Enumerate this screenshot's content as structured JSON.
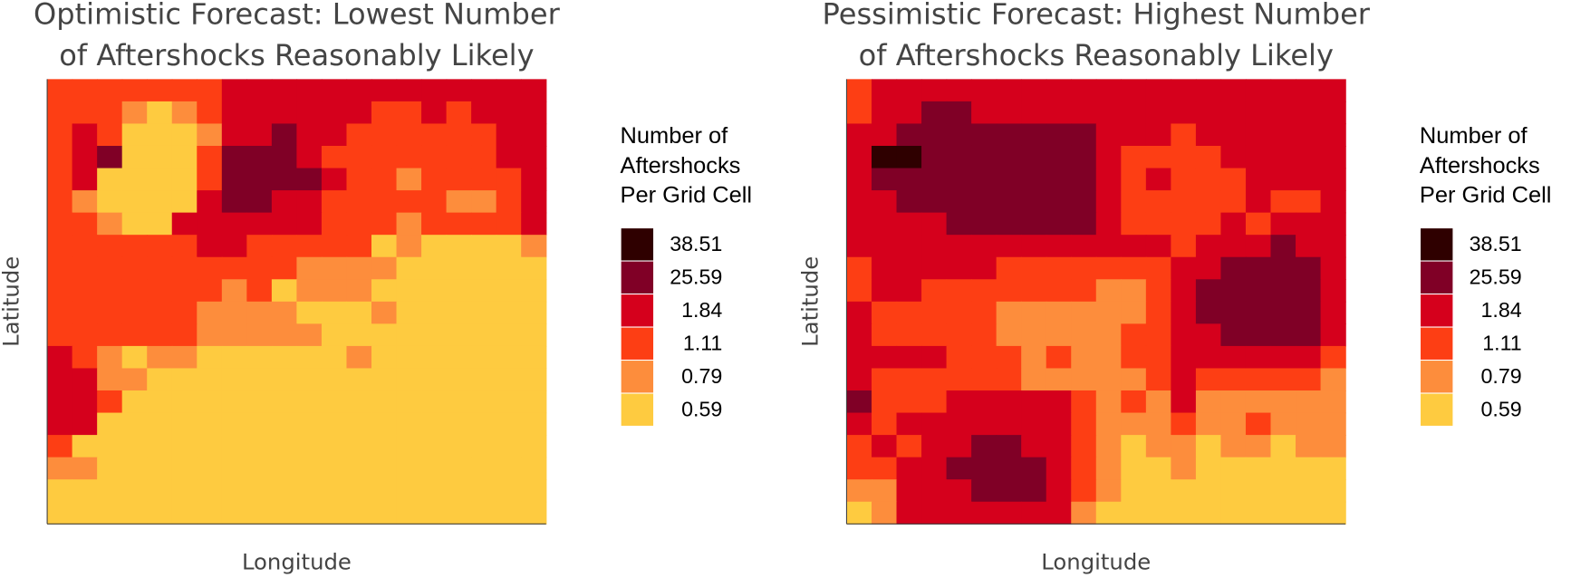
{
  "chart_data": [
    {
      "type": "heatmap",
      "title": [
        "Optimistic Forecast: Lowest Number",
        "of Aftershocks Reasonably Likely"
      ],
      "xlabel": "Longitude",
      "ylabel": "Latitude",
      "legend_title": [
        "Number of",
        "Aftershocks",
        "Per Grid Cell"
      ],
      "classes": [
        38.51,
        25.59,
        1.84,
        1.11,
        0.79,
        0.59
      ],
      "colors": [
        "#2f0000",
        "#800026",
        "#d5001c",
        "#fd3e14",
        "#fd8d3c",
        "#fecb40"
      ],
      "z": [
        [
          1.11,
          1.11,
          1.11,
          1.11,
          1.11,
          1.11,
          1.11,
          1.84,
          1.84,
          1.84,
          1.84,
          1.84,
          1.84,
          1.84,
          1.84,
          1.84,
          1.84,
          1.84,
          1.84,
          1.84
        ],
        [
          1.11,
          1.11,
          1.11,
          0.79,
          0.59,
          0.79,
          1.11,
          1.84,
          1.84,
          1.84,
          1.84,
          1.84,
          1.84,
          1.11,
          1.11,
          1.84,
          1.11,
          1.84,
          1.84,
          1.84
        ],
        [
          1.11,
          1.84,
          1.11,
          0.59,
          0.59,
          0.59,
          0.79,
          1.84,
          1.84,
          25.59,
          1.84,
          1.84,
          1.11,
          1.11,
          1.11,
          1.11,
          1.11,
          1.11,
          1.84,
          1.84
        ],
        [
          1.11,
          1.84,
          25.59,
          0.59,
          0.59,
          0.59,
          1.11,
          25.59,
          25.59,
          25.59,
          1.84,
          1.11,
          1.11,
          1.11,
          1.11,
          1.11,
          1.11,
          1.11,
          1.84,
          1.84
        ],
        [
          1.11,
          1.84,
          0.59,
          0.59,
          0.59,
          0.59,
          1.11,
          25.59,
          25.59,
          25.59,
          25.59,
          1.84,
          1.11,
          1.11,
          0.79,
          1.11,
          1.11,
          1.11,
          1.11,
          1.84
        ],
        [
          1.11,
          0.79,
          0.59,
          0.59,
          0.59,
          0.59,
          1.84,
          25.59,
          25.59,
          1.84,
          1.84,
          1.11,
          1.11,
          1.11,
          1.11,
          1.11,
          0.79,
          0.79,
          1.11,
          1.84
        ],
        [
          1.11,
          1.11,
          0.79,
          0.59,
          0.59,
          1.84,
          1.84,
          1.84,
          1.84,
          1.84,
          1.84,
          1.11,
          1.11,
          1.11,
          0.79,
          1.11,
          1.11,
          1.11,
          1.11,
          1.84
        ],
        [
          1.11,
          1.11,
          1.11,
          1.11,
          1.11,
          1.11,
          1.84,
          1.84,
          1.11,
          1.11,
          1.11,
          1.11,
          1.11,
          0.59,
          0.79,
          0.59,
          0.59,
          0.59,
          0.59,
          0.79
        ],
        [
          1.11,
          1.11,
          1.11,
          1.11,
          1.11,
          1.11,
          1.11,
          1.11,
          1.11,
          1.11,
          0.79,
          0.79,
          0.79,
          0.79,
          0.59,
          0.59,
          0.59,
          0.59,
          0.59,
          0.59
        ],
        [
          1.11,
          1.11,
          1.11,
          1.11,
          1.11,
          1.11,
          1.11,
          0.79,
          1.11,
          0.59,
          0.79,
          0.79,
          0.79,
          0.59,
          0.59,
          0.59,
          0.59,
          0.59,
          0.59,
          0.59
        ],
        [
          1.11,
          1.11,
          1.11,
          1.11,
          1.11,
          1.11,
          0.79,
          0.79,
          0.79,
          0.79,
          0.59,
          0.59,
          0.59,
          0.79,
          0.59,
          0.59,
          0.59,
          0.59,
          0.59,
          0.59
        ],
        [
          1.11,
          1.11,
          1.11,
          1.11,
          1.11,
          1.11,
          0.79,
          0.79,
          0.79,
          0.79,
          0.79,
          0.59,
          0.59,
          0.59,
          0.59,
          0.59,
          0.59,
          0.59,
          0.59,
          0.59
        ],
        [
          1.84,
          1.11,
          0.79,
          0.59,
          0.79,
          0.79,
          0.59,
          0.59,
          0.59,
          0.59,
          0.59,
          0.59,
          0.79,
          0.59,
          0.59,
          0.59,
          0.59,
          0.59,
          0.59,
          0.59
        ],
        [
          1.84,
          1.84,
          0.79,
          0.79,
          0.59,
          0.59,
          0.59,
          0.59,
          0.59,
          0.59,
          0.59,
          0.59,
          0.59,
          0.59,
          0.59,
          0.59,
          0.59,
          0.59,
          0.59,
          0.59
        ],
        [
          1.84,
          1.84,
          1.11,
          0.59,
          0.59,
          0.59,
          0.59,
          0.59,
          0.59,
          0.59,
          0.59,
          0.59,
          0.59,
          0.59,
          0.59,
          0.59,
          0.59,
          0.59,
          0.59,
          0.59
        ],
        [
          1.84,
          1.84,
          0.59,
          0.59,
          0.59,
          0.59,
          0.59,
          0.59,
          0.59,
          0.59,
          0.59,
          0.59,
          0.59,
          0.59,
          0.59,
          0.59,
          0.59,
          0.59,
          0.59,
          0.59
        ],
        [
          1.11,
          0.59,
          0.59,
          0.59,
          0.59,
          0.59,
          0.59,
          0.59,
          0.59,
          0.59,
          0.59,
          0.59,
          0.59,
          0.59,
          0.59,
          0.59,
          0.59,
          0.59,
          0.59,
          0.59
        ],
        [
          0.79,
          0.79,
          0.59,
          0.59,
          0.59,
          0.59,
          0.59,
          0.59,
          0.59,
          0.59,
          0.59,
          0.59,
          0.59,
          0.59,
          0.59,
          0.59,
          0.59,
          0.59,
          0.59,
          0.59
        ],
        [
          0.59,
          0.59,
          0.59,
          0.59,
          0.59,
          0.59,
          0.59,
          0.59,
          0.59,
          0.59,
          0.59,
          0.59,
          0.59,
          0.59,
          0.59,
          0.59,
          0.59,
          0.59,
          0.59,
          0.59
        ],
        [
          0.59,
          0.59,
          0.59,
          0.59,
          0.59,
          0.59,
          0.59,
          0.59,
          0.59,
          0.59,
          0.59,
          0.59,
          0.59,
          0.59,
          0.59,
          0.59,
          0.59,
          0.59,
          0.59,
          0.59
        ]
      ]
    },
    {
      "type": "heatmap",
      "title": [
        "Pessimistic Forecast: Highest Number",
        "of Aftershocks Reasonably Likely"
      ],
      "xlabel": "Longitude",
      "ylabel": "Latitude",
      "legend_title": [
        "Number of",
        "Aftershocks",
        "Per Grid Cell"
      ],
      "classes": [
        38.51,
        25.59,
        1.84,
        1.11,
        0.79,
        0.59
      ],
      "colors": [
        "#2f0000",
        "#800026",
        "#d5001c",
        "#fd3e14",
        "#fd8d3c",
        "#fecb40"
      ],
      "z": [
        [
          1.11,
          1.84,
          1.84,
          1.84,
          1.84,
          1.84,
          1.84,
          1.84,
          1.84,
          1.84,
          1.84,
          1.84,
          1.84,
          1.84,
          1.84,
          1.84,
          1.84,
          1.84,
          1.84,
          1.84
        ],
        [
          1.11,
          1.84,
          1.84,
          25.59,
          25.59,
          1.84,
          1.84,
          1.84,
          1.84,
          1.84,
          1.84,
          1.84,
          1.84,
          1.84,
          1.84,
          1.84,
          1.84,
          1.84,
          1.84,
          1.84
        ],
        [
          1.84,
          1.84,
          25.59,
          25.59,
          25.59,
          25.59,
          25.59,
          25.59,
          25.59,
          25.59,
          1.84,
          1.84,
          1.84,
          1.11,
          1.84,
          1.84,
          1.84,
          1.84,
          1.84,
          1.84
        ],
        [
          1.84,
          38.51,
          38.51,
          25.59,
          25.59,
          25.59,
          25.59,
          25.59,
          25.59,
          25.59,
          1.84,
          1.11,
          1.11,
          1.11,
          1.11,
          1.84,
          1.84,
          1.84,
          1.84,
          1.84
        ],
        [
          1.84,
          25.59,
          25.59,
          25.59,
          25.59,
          25.59,
          25.59,
          25.59,
          25.59,
          25.59,
          1.84,
          1.11,
          1.84,
          1.11,
          1.11,
          1.11,
          1.84,
          1.84,
          1.84,
          1.84
        ],
        [
          1.84,
          1.84,
          25.59,
          25.59,
          25.59,
          25.59,
          25.59,
          25.59,
          25.59,
          25.59,
          1.84,
          1.11,
          1.11,
          1.11,
          1.11,
          1.11,
          1.84,
          1.11,
          1.11,
          1.84
        ],
        [
          1.84,
          1.84,
          1.84,
          1.84,
          25.59,
          25.59,
          25.59,
          25.59,
          25.59,
          25.59,
          1.84,
          1.11,
          1.11,
          1.11,
          1.11,
          1.84,
          1.11,
          1.84,
          1.84,
          1.84
        ],
        [
          1.84,
          1.84,
          1.84,
          1.84,
          1.84,
          1.84,
          1.84,
          1.84,
          1.84,
          1.84,
          1.84,
          1.84,
          1.84,
          1.11,
          1.84,
          1.84,
          1.84,
          25.59,
          1.84,
          1.84
        ],
        [
          1.11,
          1.84,
          1.84,
          1.84,
          1.84,
          1.84,
          1.11,
          1.11,
          1.11,
          1.11,
          1.11,
          1.11,
          1.11,
          1.84,
          1.84,
          25.59,
          25.59,
          25.59,
          25.59,
          1.84
        ],
        [
          1.11,
          1.84,
          1.84,
          1.11,
          1.11,
          1.11,
          1.11,
          1.11,
          1.11,
          1.11,
          0.79,
          0.79,
          1.11,
          1.84,
          25.59,
          25.59,
          25.59,
          25.59,
          25.59,
          1.84
        ],
        [
          1.84,
          1.11,
          1.11,
          1.11,
          1.11,
          1.11,
          0.79,
          0.79,
          0.79,
          0.79,
          0.79,
          0.79,
          1.11,
          1.84,
          25.59,
          25.59,
          25.59,
          25.59,
          25.59,
          1.84
        ],
        [
          1.84,
          1.11,
          1.11,
          1.11,
          1.11,
          1.11,
          0.79,
          0.79,
          0.79,
          0.79,
          0.79,
          1.11,
          1.11,
          1.84,
          1.84,
          25.59,
          25.59,
          25.59,
          25.59,
          1.84
        ],
        [
          1.84,
          1.84,
          1.84,
          1.84,
          1.11,
          1.11,
          1.11,
          0.79,
          1.11,
          0.79,
          0.79,
          1.11,
          1.11,
          1.84,
          1.84,
          1.84,
          1.84,
          1.84,
          1.84,
          1.11
        ],
        [
          1.84,
          1.11,
          1.11,
          1.11,
          1.11,
          1.11,
          1.11,
          0.79,
          0.79,
          0.79,
          0.79,
          0.79,
          1.11,
          1.84,
          1.11,
          1.11,
          1.11,
          1.11,
          1.11,
          0.79
        ],
        [
          25.59,
          1.11,
          1.11,
          1.11,
          1.84,
          1.84,
          1.84,
          1.84,
          1.84,
          1.11,
          0.79,
          1.11,
          0.79,
          1.84,
          0.79,
          0.79,
          0.79,
          0.79,
          0.79,
          0.79
        ],
        [
          1.84,
          1.11,
          1.84,
          1.84,
          1.84,
          1.84,
          1.84,
          1.84,
          1.84,
          1.11,
          0.79,
          0.79,
          0.79,
          1.11,
          0.79,
          0.79,
          1.11,
          0.79,
          0.79,
          0.79
        ],
        [
          1.11,
          1.84,
          1.11,
          1.84,
          1.84,
          25.59,
          25.59,
          1.84,
          1.84,
          1.11,
          0.79,
          0.59,
          0.79,
          0.79,
          0.59,
          0.79,
          0.79,
          0.59,
          0.79,
          0.79
        ],
        [
          1.11,
          1.11,
          1.84,
          1.84,
          25.59,
          25.59,
          25.59,
          25.59,
          1.84,
          1.11,
          0.79,
          0.59,
          0.59,
          0.79,
          0.59,
          0.59,
          0.59,
          0.59,
          0.59,
          0.59
        ],
        [
          0.79,
          0.79,
          1.84,
          1.84,
          1.84,
          25.59,
          25.59,
          25.59,
          1.84,
          1.11,
          0.79,
          0.59,
          0.59,
          0.59,
          0.59,
          0.59,
          0.59,
          0.59,
          0.59,
          0.59
        ],
        [
          0.59,
          0.79,
          1.84,
          1.84,
          1.84,
          1.84,
          1.84,
          1.84,
          1.84,
          0.79,
          0.59,
          0.59,
          0.59,
          0.59,
          0.59,
          0.59,
          0.59,
          0.59,
          0.59,
          0.59
        ]
      ]
    }
  ]
}
